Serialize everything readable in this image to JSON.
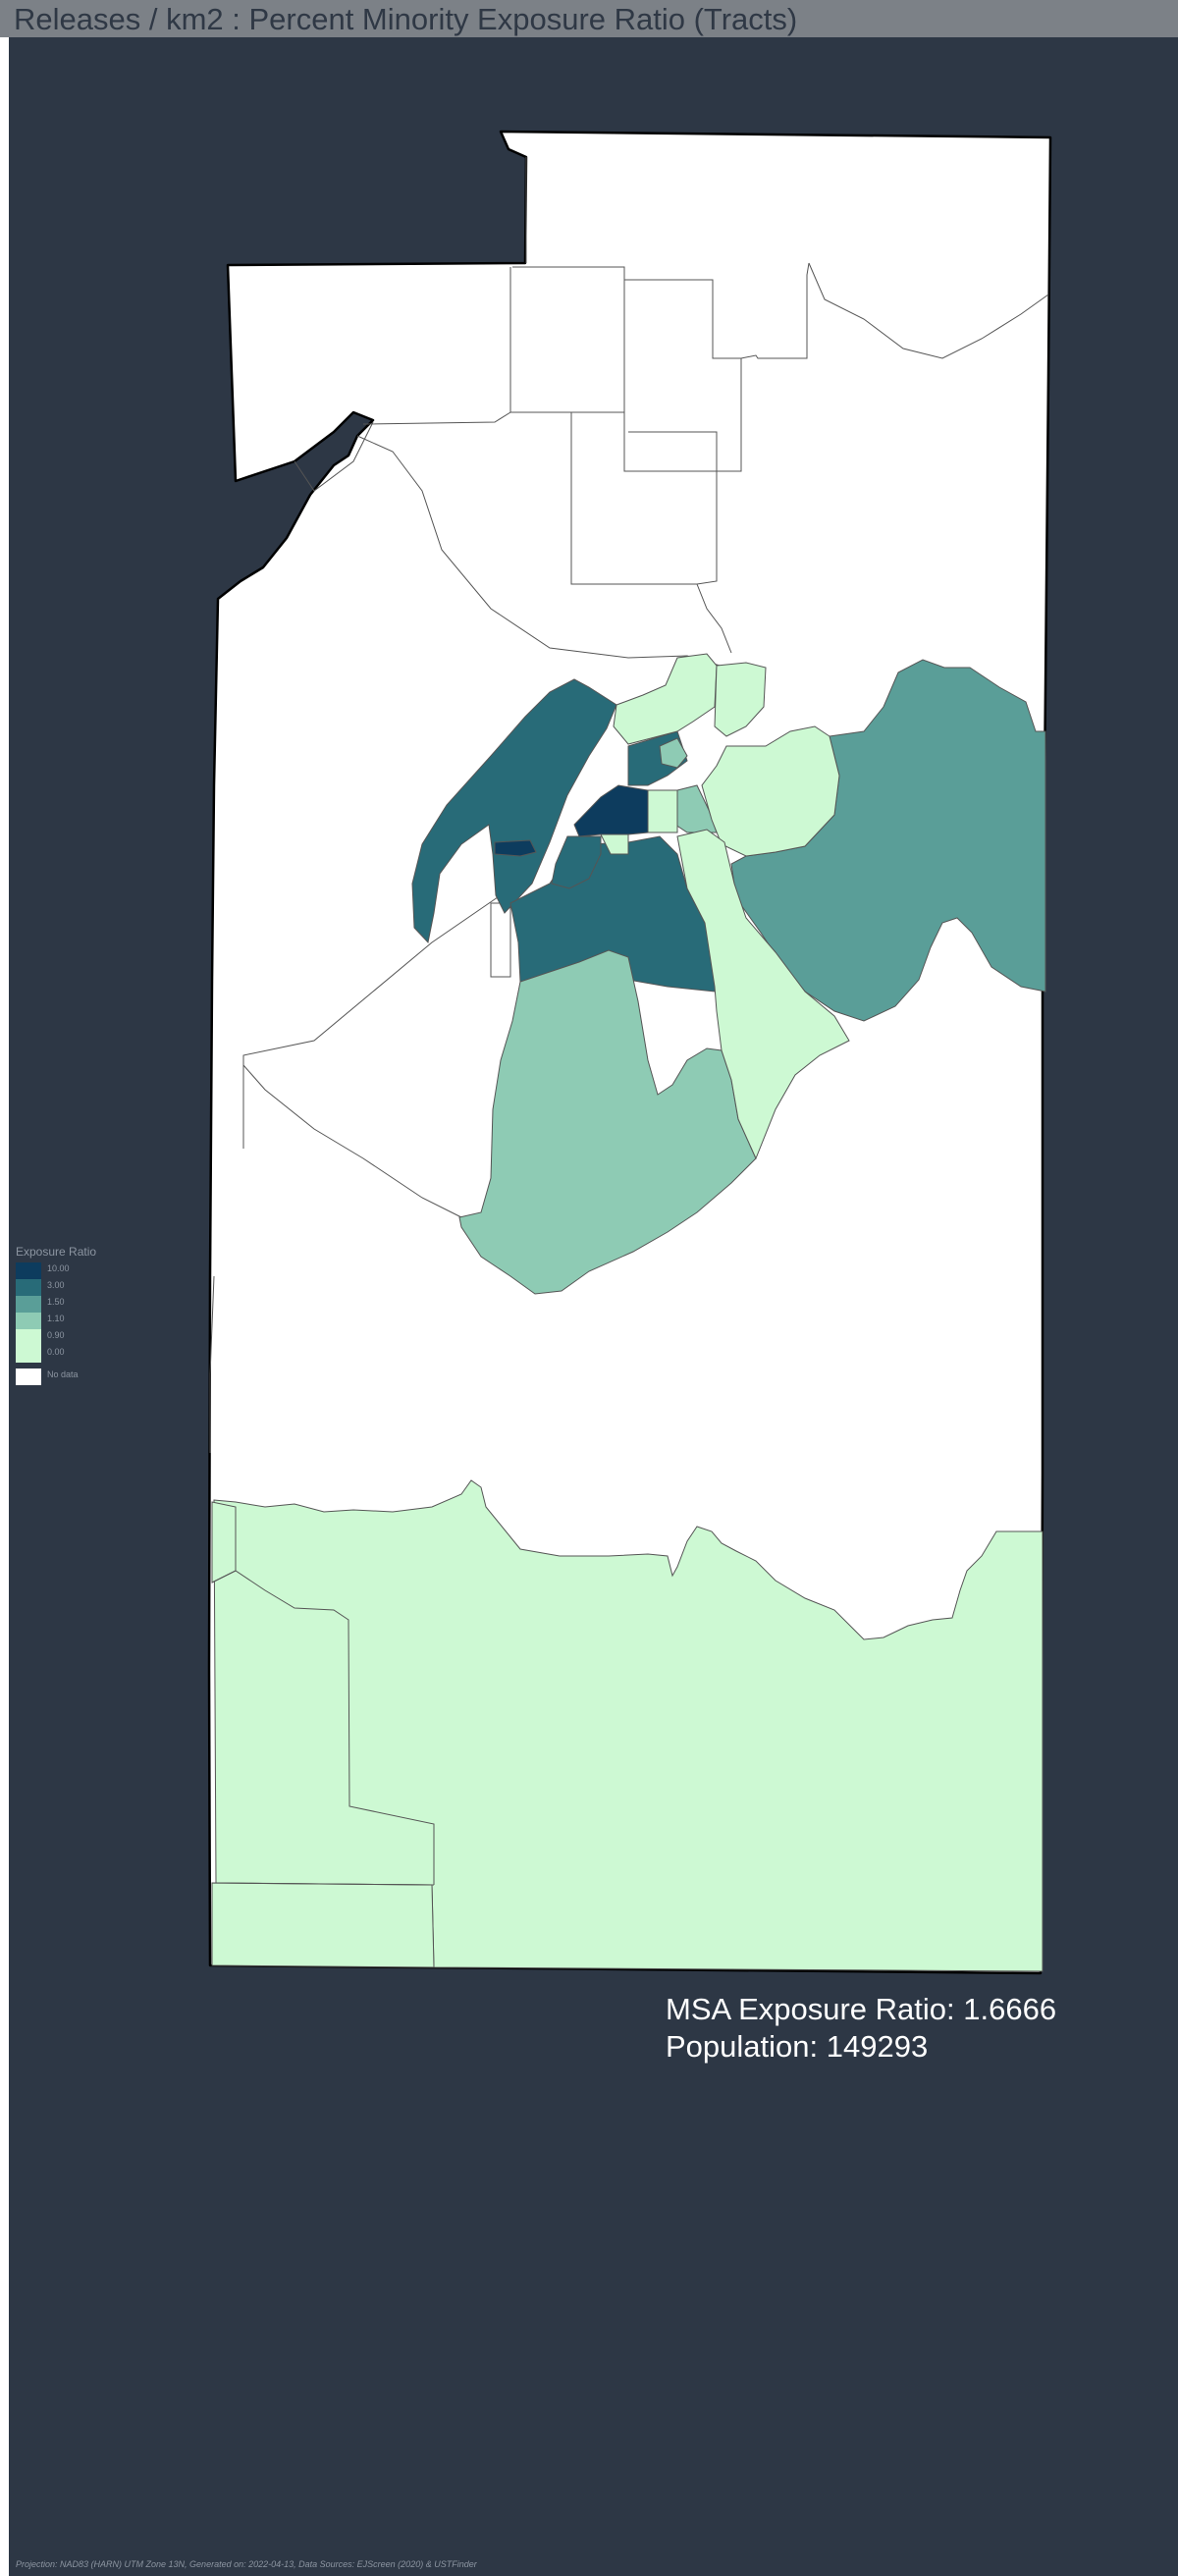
{
  "header": {
    "title": "Releases / km2 : Percent Minority Exposure Ratio (Tracts)"
  },
  "colors": {
    "header_bg": "#7c8187",
    "frame_bg": "#2d3745",
    "no_data": "#ffffff",
    "tract_border": "#555555",
    "county_border": "#000000"
  },
  "legend": {
    "title": "Exposure Ratio",
    "classes": [
      {
        "label": "10.00",
        "color": "#0d3c5e"
      },
      {
        "label": "3.00",
        "color": "#286b78"
      },
      {
        "label": "1.50",
        "color": "#5a9e98"
      },
      {
        "label": "1.10",
        "color": "#8ecbb4"
      },
      {
        "label": "0.90",
        "color": "#cdf9d3"
      },
      {
        "label": "0.00",
        "color": "#cdf9d3"
      }
    ],
    "no_data_label": "No data"
  },
  "stats": {
    "exposure_ratio": "MSA Exposure Ratio: 1.6666",
    "population": "Population: 149293"
  },
  "footer": {
    "text": "Projection: NAD83 (HARN) UTM Zone 13N, Generated on: 2022-04-13, Data Sources: EJScreen (2020) & USTFinder"
  }
}
